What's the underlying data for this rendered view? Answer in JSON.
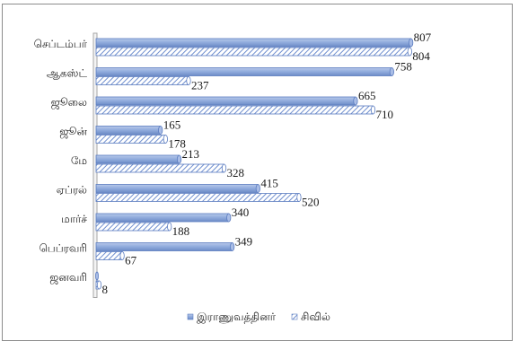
{
  "chart_data": {
    "type": "bar",
    "orientation": "horizontal",
    "categories": [
      "செப்டம்பர்",
      "ஆகஸ்ட்",
      "ஜூலை",
      "ஜூன்",
      "மே",
      "ஏப்ரல்",
      "மார்ச்",
      "பெப்ரவரி",
      "ஜனவரி"
    ],
    "series": [
      {
        "name": "இராணுவத்தினர்",
        "values": [
          807,
          758,
          665,
          165,
          213,
          415,
          340,
          349,
          0
        ],
        "color": "#8faadc"
      },
      {
        "name": "சிவில்",
        "values": [
          804,
          237,
          710,
          178,
          328,
          520,
          188,
          67,
          8
        ],
        "color": "#8faadc",
        "pattern": "diagonal-hatch"
      }
    ],
    "xlim": [
      0,
      900
    ],
    "grid": false,
    "legend_position": "bottom",
    "data_labels": true
  }
}
